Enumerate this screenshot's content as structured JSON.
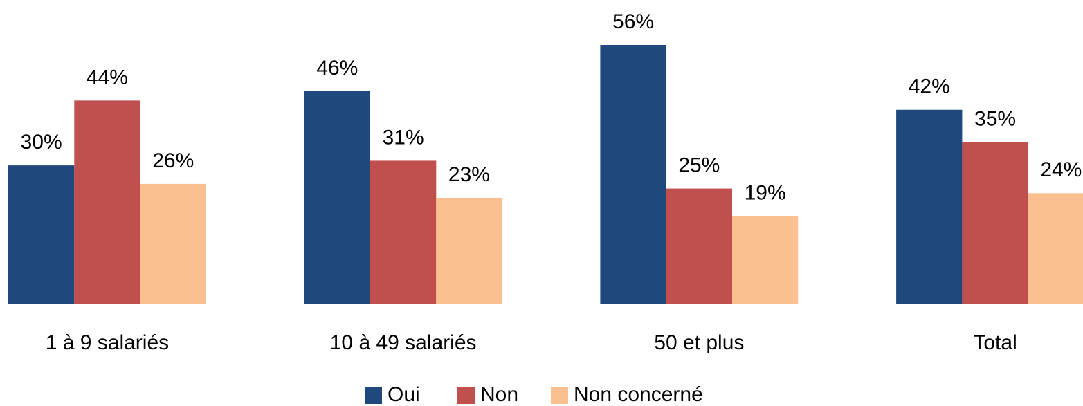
{
  "chart_data": {
    "type": "bar",
    "categories": [
      "1 à 9 salariés",
      "10 à 49 salariés",
      "50 et plus",
      "Total"
    ],
    "series": [
      {
        "name": "Oui",
        "color": "#1f497d",
        "values": [
          30,
          46,
          56,
          42
        ],
        "value_labels": [
          "30%",
          "46%",
          "56%",
          "42%"
        ]
      },
      {
        "name": "Non",
        "color": "#c0504d",
        "values": [
          44,
          31,
          25,
          35
        ],
        "value_labels": [
          "44%",
          "31%",
          "25%",
          "35%"
        ]
      },
      {
        "name": "Non concerné",
        "color": "#fac090",
        "values": [
          26,
          23,
          19,
          24
        ],
        "value_labels": [
          "26%",
          "23%",
          "19%",
          "24%"
        ]
      }
    ],
    "legend": "bottom"
  }
}
